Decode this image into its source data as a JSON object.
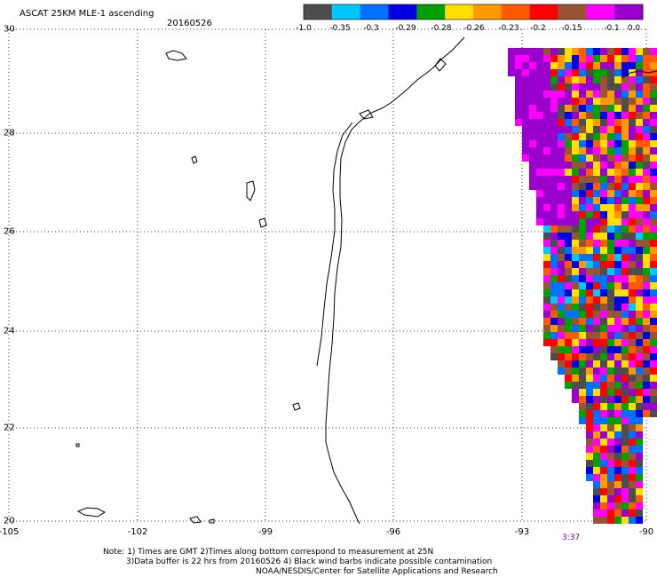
{
  "title": "ASCAT 25KM MLE-1 ascending",
  "date": "20160526",
  "colorbar": {
    "colors": [
      "#4d4d4d",
      "#00c8ff",
      "#0070ff",
      "#0000e0",
      "#00a000",
      "#ffe000",
      "#ff9a00",
      "#ff5a00",
      "#ff0000",
      "#995533",
      "#ff00ff",
      "#9900cc"
    ],
    "labels": [
      "-1.0",
      "-0.35",
      "-0.3",
      "-0.29",
      "-0.28",
      "-0.26",
      "-0.23",
      "-0.2",
      "-0.15",
      "-0.1",
      "0.0"
    ]
  },
  "axes": {
    "x_ticks": [
      "-105",
      "-102",
      "-99",
      "-96",
      "-93",
      "-90"
    ],
    "y_ticks": [
      "30",
      "28",
      "26",
      "24",
      "22",
      "20"
    ]
  },
  "time_label": "3:37",
  "notes": [
    "Note: 1) Times are GMT 2)Times along bottom correspond to measurement at 25N",
    "3)Data buffer is 22 hrs from 20160526 4) Black wind barbs indicate possible contamination",
    "NOAA/NESDIS/Center for Satellite Applications and Research"
  ]
}
